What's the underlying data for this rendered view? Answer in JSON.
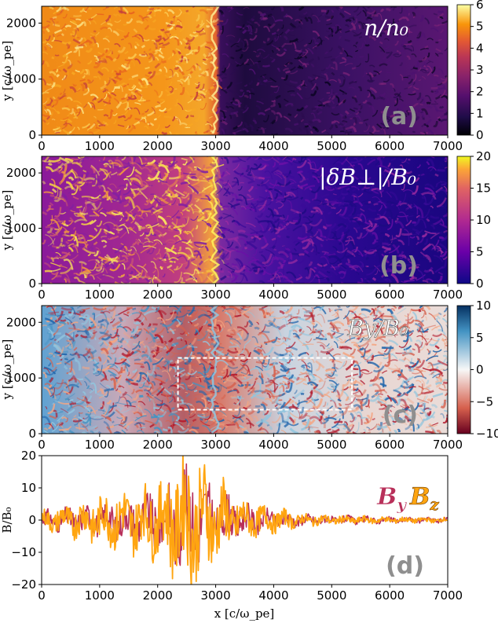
{
  "chart_data": [
    {
      "type": "heatmap",
      "panel": "a",
      "title": "n/n₀",
      "panel_label": "(a)",
      "ylabel": "y [c/ω_pe]",
      "xlim": [
        0,
        7000
      ],
      "ylim": [
        0,
        2300
      ],
      "x_ticks": [
        "0",
        "1000",
        "2000",
        "3000",
        "4000",
        "5000",
        "6000",
        "7000"
      ],
      "y_ticks": [
        "0",
        "1000",
        "2000"
      ],
      "colorbar": {
        "colormap": "inferno",
        "range": [
          0,
          6
        ],
        "ticks": [
          "0",
          "1",
          "2",
          "3",
          "4",
          "5",
          "6"
        ]
      },
      "shock_x": 3000
    },
    {
      "type": "heatmap",
      "panel": "b",
      "title": "|δB⊥|/B₀",
      "panel_label": "(b)",
      "ylabel": "y [c/ω_pe]",
      "xlim": [
        0,
        7000
      ],
      "ylim": [
        0,
        2300
      ],
      "x_ticks": [
        "0",
        "1000",
        "2000",
        "3000",
        "4000",
        "5000",
        "6000",
        "7000"
      ],
      "y_ticks": [
        "0",
        "1000",
        "2000"
      ],
      "colorbar": {
        "colormap": "plasma",
        "range": [
          0,
          20
        ],
        "ticks": [
          "0",
          "5",
          "10",
          "15",
          "20"
        ]
      },
      "shock_x": 3000
    },
    {
      "type": "heatmap",
      "panel": "c",
      "title": "By/B₀",
      "panel_label": "(c)",
      "ylabel": "y [c/ω_pe]",
      "xlim": [
        0,
        7000
      ],
      "ylim": [
        0,
        2300
      ],
      "x_ticks": [
        "0",
        "1000",
        "2000",
        "3000",
        "4000",
        "5000",
        "6000",
        "7000"
      ],
      "y_ticks": [
        "0",
        "1000",
        "2000"
      ],
      "colorbar": {
        "colormap": "RdBu",
        "range": [
          -10,
          10
        ],
        "ticks": [
          "10",
          "5",
          "0",
          "−5",
          "−10"
        ]
      },
      "highlight_box": {
        "x": [
          2350,
          5350
        ],
        "y": [
          430,
          1360
        ]
      },
      "shock_x": 3000
    },
    {
      "type": "line",
      "panel": "d",
      "panel_label": "(d)",
      "xlabel": "x [c/ω_pe]",
      "ylabel": "B/B₀",
      "xlim": [
        0,
        7000
      ],
      "ylim": [
        -20,
        20
      ],
      "x_ticks": [
        "0",
        "1000",
        "2000",
        "3000",
        "4000",
        "5000",
        "6000",
        "7000"
      ],
      "y_ticks": [
        "20",
        "10",
        "0",
        "−10",
        "−20"
      ],
      "series": [
        {
          "name": "By",
          "label_main": "B",
          "label_sub": "y",
          "color": "#b8305a",
          "envelope": [
            [
              0,
              3
            ],
            [
              1000,
              5
            ],
            [
              2000,
              9
            ],
            [
              2500,
              16
            ],
            [
              3000,
              10
            ],
            [
              3500,
              5
            ],
            [
              4000,
              3
            ],
            [
              4500,
              2
            ],
            [
              5000,
              1.5
            ],
            [
              6000,
              1
            ],
            [
              7000,
              0.8
            ]
          ]
        },
        {
          "name": "Bz",
          "label_main": "B",
          "label_sub": "z",
          "color": "#ffa510",
          "envelope": [
            [
              0,
              3
            ],
            [
              1000,
              8
            ],
            [
              2000,
              12
            ],
            [
              2500,
              22
            ],
            [
              3000,
              14
            ],
            [
              3500,
              6
            ],
            [
              4000,
              4
            ],
            [
              4500,
              2
            ],
            [
              5000,
              1.5
            ],
            [
              6000,
              1
            ],
            [
              7000,
              0.8
            ]
          ]
        }
      ]
    }
  ]
}
